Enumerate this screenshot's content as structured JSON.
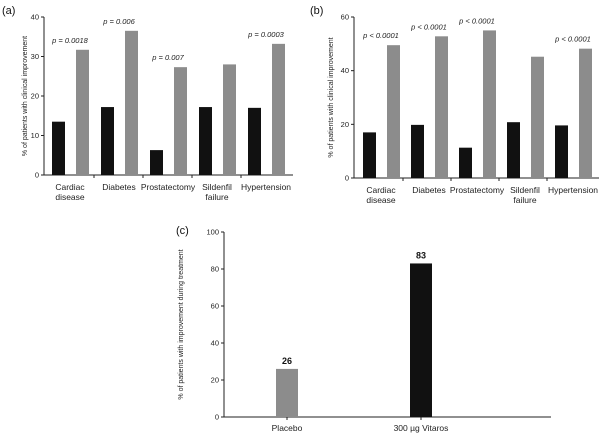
{
  "chart_data": [
    {
      "type": "bar",
      "panel_label": "(a)",
      "ylabel": "% of patients with clinical improvement",
      "categories": [
        [
          "Cardiac",
          "disease"
        ],
        [
          "Diabetes"
        ],
        [
          "Prostatectomy"
        ],
        [
          "Sildenfil",
          "failure"
        ],
        [
          "Hypertension"
        ]
      ],
      "series": [
        {
          "values": [
            13.5,
            17.2,
            6.3,
            17.2,
            17.0
          ],
          "color": "#111111"
        },
        {
          "values": [
            31.7,
            36.5,
            27.3,
            28.0,
            33.2
          ],
          "color": "#8c8c8c"
        }
      ],
      "annotations": [
        "p = 0.0018",
        "p = 0.006",
        "p = 0.007",
        "",
        "p = 0.0003"
      ],
      "ylim": [
        0,
        40
      ],
      "yticks": [
        0,
        10,
        20,
        30,
        40
      ]
    },
    {
      "type": "bar",
      "panel_label": "(b)",
      "ylabel": "% of patients with clinical improvement",
      "categories": [
        [
          "Cardiac",
          "disease"
        ],
        [
          "Diabetes"
        ],
        [
          "Prostatectomy"
        ],
        [
          "Sildenfil",
          "failure"
        ],
        [
          "Hypertension"
        ]
      ],
      "series": [
        {
          "values": [
            17.0,
            19.8,
            11.3,
            20.8,
            19.6
          ],
          "color": "#111111"
        },
        {
          "values": [
            49.5,
            52.8,
            55.0,
            45.2,
            48.2
          ],
          "color": "#8c8c8c"
        }
      ],
      "annotations": [
        "p < 0.0001",
        "p < 0.0001",
        "p < 0.0001",
        "",
        "p < 0.0001"
      ],
      "ylim": [
        0,
        60
      ],
      "yticks": [
        0,
        20,
        40,
        60
      ]
    },
    {
      "type": "bar",
      "panel_label": "(c)",
      "ylabel": "% of patients with improvement during treatment",
      "categories": [
        "Placebo",
        "300 µg Vitaros"
      ],
      "values": [
        26,
        83
      ],
      "colors": [
        "#8c8c8c",
        "#111111"
      ],
      "data_labels": [
        "26",
        "83"
      ],
      "ylim": [
        0,
        100
      ],
      "yticks": [
        0,
        20,
        40,
        60,
        80,
        100
      ]
    }
  ]
}
